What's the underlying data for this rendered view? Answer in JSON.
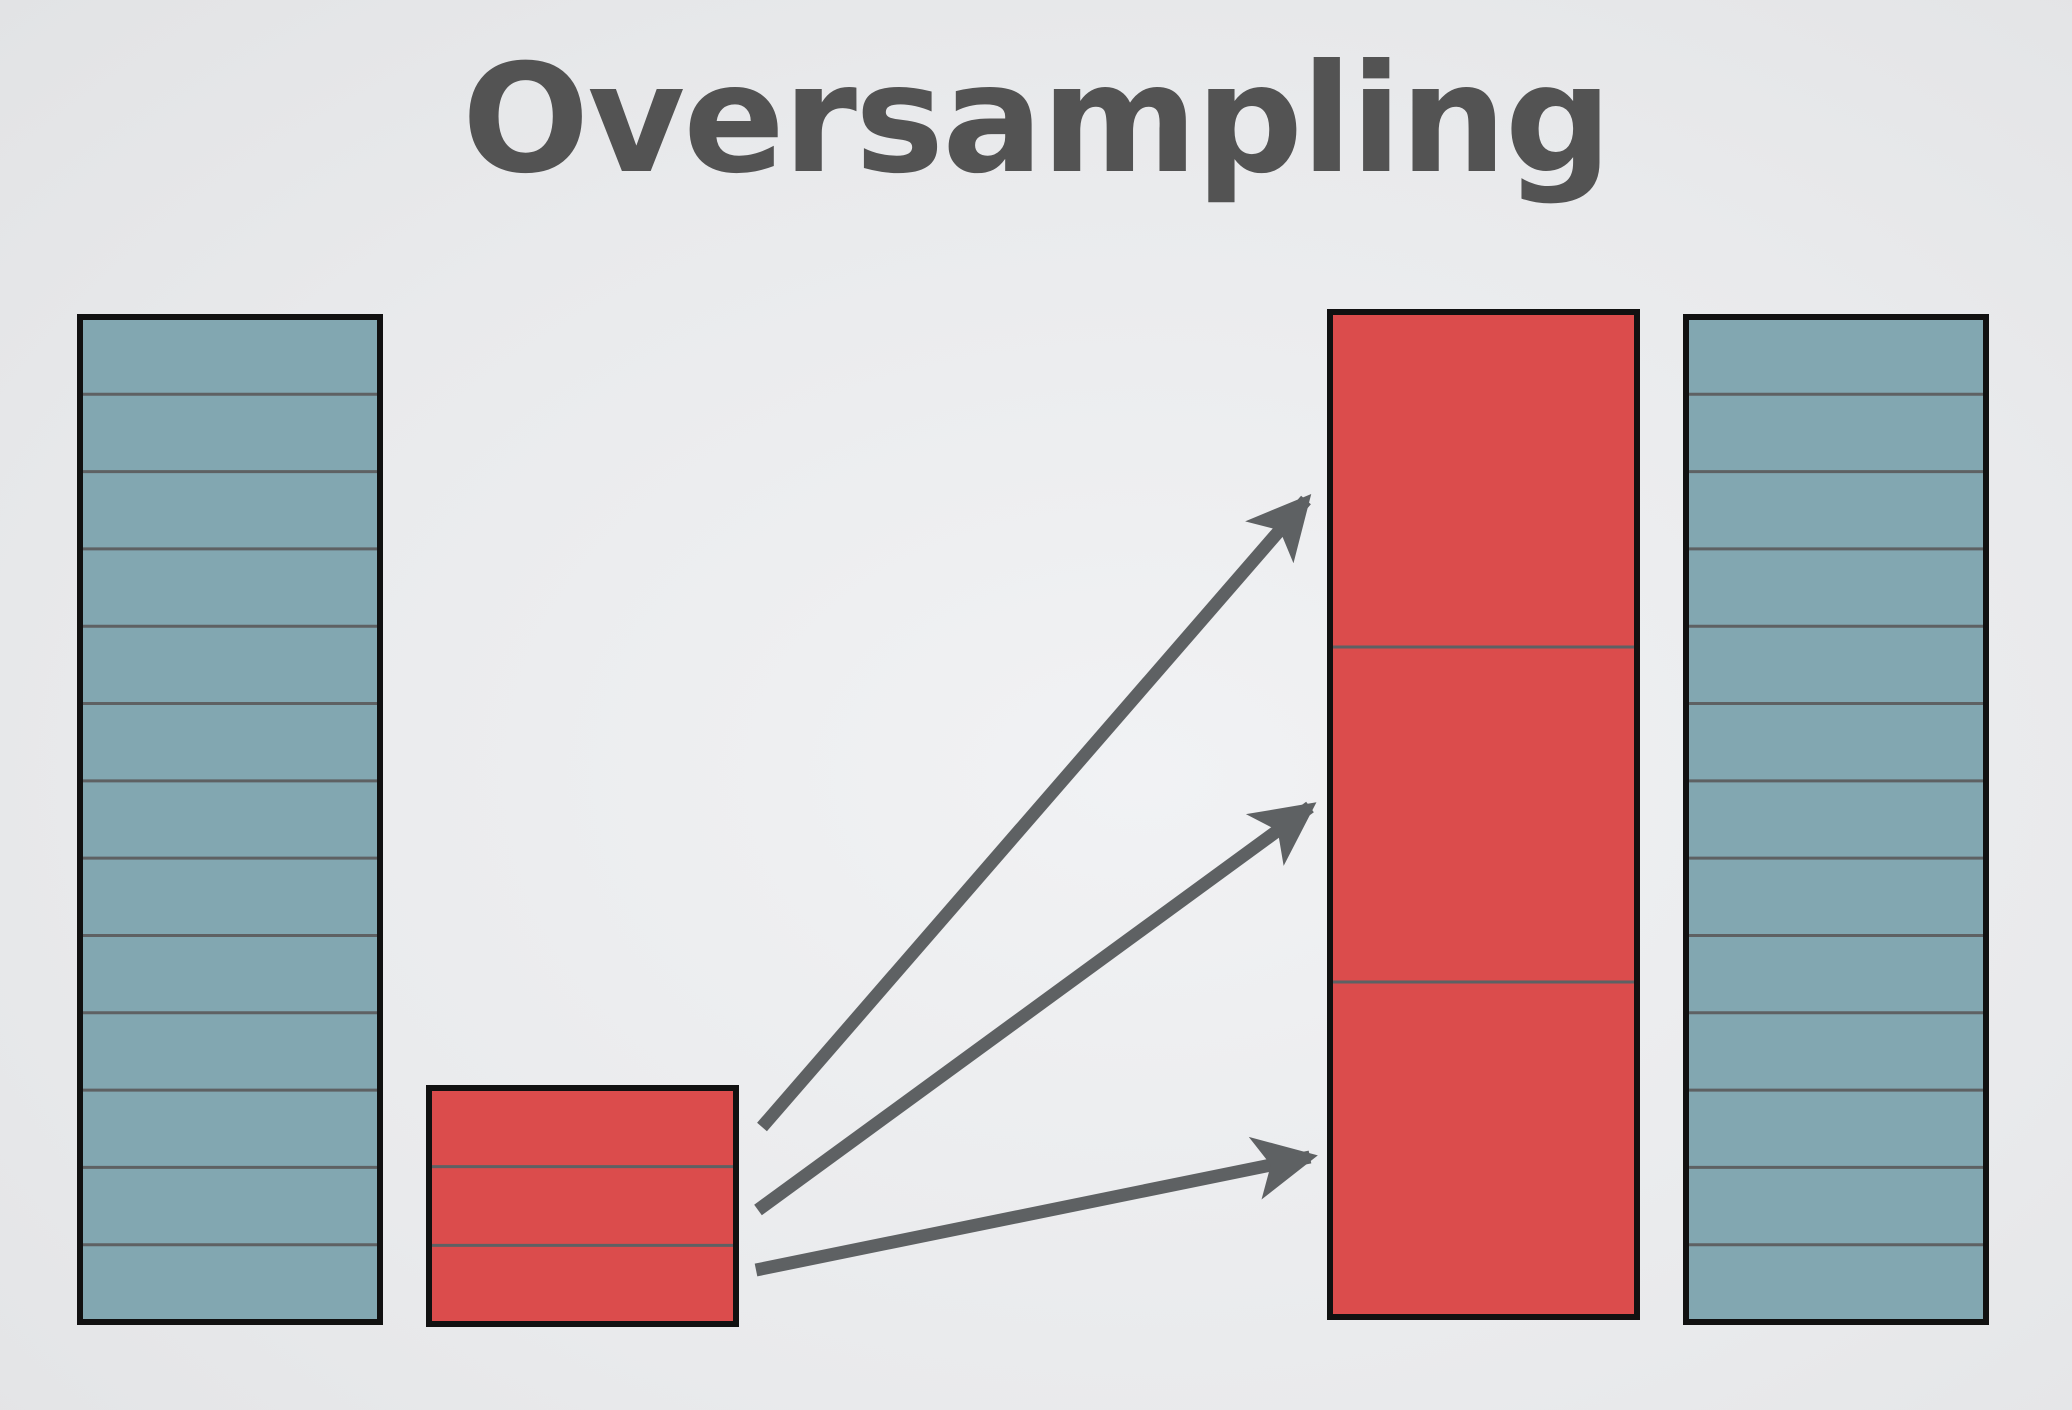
{
  "title": "Oversampling",
  "colors": {
    "majority": "#82a7b1",
    "minority": "#db4c4c",
    "border": "#111111",
    "divider": "#5e6163",
    "arrow": "#5e6163",
    "title": "#535353"
  },
  "diagram": {
    "majority_original": {
      "segments": 13
    },
    "minority_original": {
      "segments": 3
    },
    "minority_oversampled": {
      "segments": 3,
      "replication_arrows": 3
    },
    "majority_unchanged": {
      "segments": 13
    }
  }
}
